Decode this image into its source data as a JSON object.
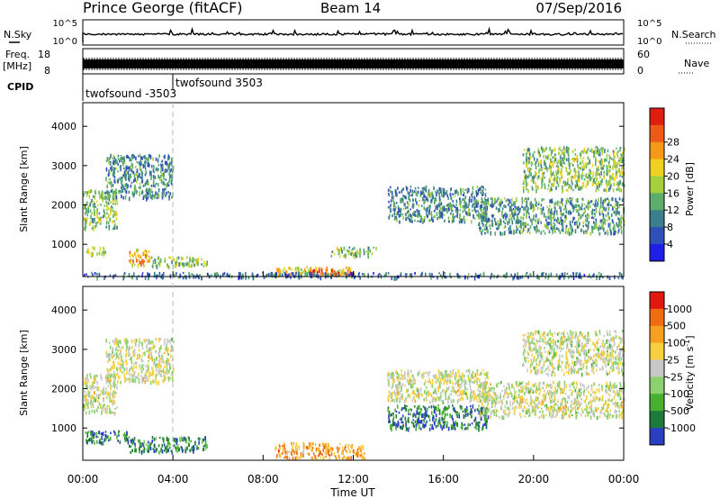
{
  "header": {
    "station": "Prince George (fitACF)",
    "beam": "Beam 14",
    "date": "07/Sep/2016"
  },
  "top_panels": {
    "nsky_label": "N.Sky",
    "nsky_ticks": [
      "10^5",
      "10^0"
    ],
    "nsearch_label": "N.Search",
    "nsearch_ticks": [
      "10^5",
      "10^0"
    ],
    "freq_label_line1": "Freq.",
    "freq_label_line2": "[MHz]",
    "freq_ticks": [
      "18",
      "8"
    ],
    "nave_label": "Nave",
    "nave_ticks": [
      "60",
      "0"
    ],
    "cpid_label": "CPID",
    "cpid_entries": [
      "twofsound -3503",
      "twofsound 3503"
    ]
  },
  "chart_data": [
    {
      "type": "heatmap",
      "name": "power",
      "ylabel": "Slant Range [km]",
      "yticks": [
        1000,
        2000,
        3000,
        4000
      ],
      "ylim": [
        180,
        4600
      ],
      "xlim": [
        0,
        24
      ],
      "colorbar": {
        "label": "Power [dB]",
        "ticks": [
          4,
          8,
          12,
          16,
          20,
          24,
          28
        ],
        "colors": [
          "#1f1fe8",
          "#2e50b8",
          "#3b7f8c",
          "#5cae6a",
          "#a6cf3e",
          "#f0d020",
          "#f59a18",
          "#ee5a16",
          "#e01e10"
        ]
      },
      "echo_regions": [
        {
          "t": [
            0.0,
            1.5
          ],
          "r": [
            1400,
            2400
          ],
          "level": 0.45
        },
        {
          "t": [
            0.0,
            1.0
          ],
          "r": [
            750,
            950
          ],
          "level": 0.55
        },
        {
          "t": [
            1.0,
            4.0
          ],
          "r": [
            2200,
            3300
          ],
          "level": 0.3
        },
        {
          "t": [
            2.0,
            3.0
          ],
          "r": [
            500,
            900
          ],
          "level": 0.7
        },
        {
          "t": [
            3.0,
            5.5
          ],
          "r": [
            450,
            700
          ],
          "level": 0.45
        },
        {
          "t": [
            8.5,
            12.0
          ],
          "r": [
            250,
            450
          ],
          "level": 0.6
        },
        {
          "t": [
            10.0,
            12.0
          ],
          "r": [
            250,
            380
          ],
          "level": 0.9
        },
        {
          "t": [
            11.0,
            13.0
          ],
          "r": [
            700,
            950
          ],
          "level": 0.4
        },
        {
          "t": [
            13.5,
            18.0
          ],
          "r": [
            1600,
            2500
          ],
          "level": 0.3
        },
        {
          "t": [
            17.5,
            24.0
          ],
          "r": [
            1300,
            2200
          ],
          "level": 0.35
        },
        {
          "t": [
            19.5,
            24.0
          ],
          "r": [
            2400,
            3500
          ],
          "level": 0.45
        },
        {
          "t": [
            0.0,
            24.0
          ],
          "r": [
            180,
            300
          ],
          "level": 0.25
        }
      ]
    },
    {
      "type": "heatmap",
      "name": "velocity",
      "ylabel": "Slant Range [km]",
      "xlabel": "Time UT",
      "xticks": [
        "00:00",
        "04:00",
        "08:00",
        "12:00",
        "16:00",
        "20:00",
        "00:00"
      ],
      "yticks": [
        1000,
        2000,
        3000,
        4000
      ],
      "ylim": [
        180,
        4600
      ],
      "xlim": [
        0,
        24
      ],
      "colorbar": {
        "label": "Velocity [m s^-1]",
        "ticks": [
          1000,
          500,
          100,
          25,
          -25,
          -100,
          -500,
          -1000
        ],
        "colors": [
          "#2a3fc0",
          "#1c7a3a",
          "#48b030",
          "#8cd070",
          "#c8c8c8",
          "#f6d040",
          "#f5a020",
          "#f06c10",
          "#e21810"
        ]
      },
      "echo_regions": [
        {
          "t": [
            0.0,
            1.5
          ],
          "r": [
            1400,
            2400
          ],
          "level": 0.5
        },
        {
          "t": [
            0.0,
            2.0
          ],
          "r": [
            650,
            950
          ],
          "level": 0.15
        },
        {
          "t": [
            1.0,
            4.0
          ],
          "r": [
            2200,
            3300
          ],
          "level": 0.5
        },
        {
          "t": [
            2.0,
            5.5
          ],
          "r": [
            400,
            800
          ],
          "level": 0.2
        },
        {
          "t": [
            8.5,
            12.5
          ],
          "r": [
            250,
            650
          ],
          "level": 0.72
        },
        {
          "t": [
            13.5,
            18.0
          ],
          "r": [
            1000,
            1600
          ],
          "level": 0.15
        },
        {
          "t": [
            13.5,
            18.0
          ],
          "r": [
            1700,
            2500
          ],
          "level": 0.5
        },
        {
          "t": [
            17.5,
            24.0
          ],
          "r": [
            1300,
            2200
          ],
          "level": 0.5
        },
        {
          "t": [
            19.5,
            24.0
          ],
          "r": [
            2400,
            3500
          ],
          "level": 0.48
        }
      ]
    }
  ]
}
